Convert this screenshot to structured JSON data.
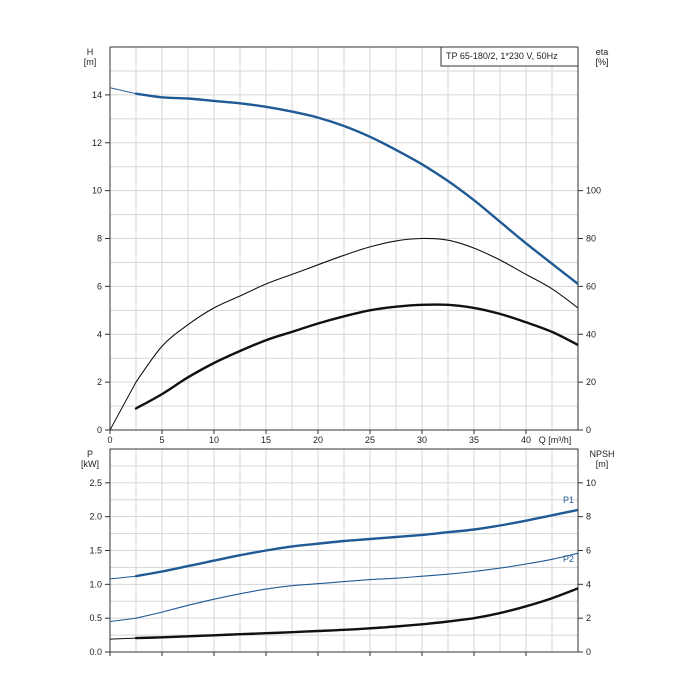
{
  "chart_data": [
    {
      "type": "line",
      "title": "TP 65-180/2, 1*230 V, 50Hz",
      "xlabel": "Q [m³/h]",
      "x_ticks": [
        "0",
        "5",
        "10",
        "15",
        "20",
        "25",
        "30",
        "35",
        "40"
      ],
      "xlim": [
        0,
        45
      ],
      "left_axis": {
        "label": "H",
        "unit": "[m]",
        "ylim": [
          0,
          16
        ],
        "ticks": [
          "0",
          "2",
          "4",
          "6",
          "8",
          "10",
          "12",
          "14"
        ]
      },
      "right_axis": {
        "label": "eta",
        "unit": "[%]",
        "ylim": [
          0,
          160
        ],
        "ticks": [
          "0",
          "20",
          "40",
          "60",
          "80",
          "100"
        ]
      },
      "grid": true,
      "series": [
        {
          "axis": "left",
          "color": "#1f5a94",
          "width": 2.4,
          "extension": true,
          "x": [
            0,
            2.5,
            5,
            7.5,
            10,
            12.5,
            15,
            17.5,
            20,
            22.5,
            25,
            27.5,
            30,
            32.5,
            35,
            37.5,
            40,
            45
          ],
          "y": [
            14.3,
            14.05,
            13.9,
            13.85,
            13.75,
            13.65,
            13.5,
            13.3,
            13.05,
            12.7,
            12.25,
            11.7,
            11.1,
            10.4,
            9.6,
            8.7,
            7.8,
            6.1
          ]
        },
        {
          "axis": "right",
          "color": "#111111",
          "width": 1.1,
          "extension": true,
          "x": [
            0,
            2.5,
            5,
            7.5,
            10,
            12.5,
            15,
            17.5,
            20,
            22.5,
            25,
            27.5,
            30,
            32.5,
            35,
            37.5,
            40,
            42.5,
            45
          ],
          "y": [
            0,
            20,
            35,
            44,
            51,
            56,
            61,
            65,
            69,
            73,
            76.5,
            79,
            80,
            79.3,
            76,
            71,
            65,
            59,
            51
          ]
        },
        {
          "axis": "right",
          "color": "#111111",
          "width": 2.4,
          "extension": false,
          "x": [
            2.5,
            5,
            7.5,
            10,
            12.5,
            15,
            17.5,
            20,
            22.5,
            25,
            27.5,
            30,
            32.5,
            35,
            37.5,
            40,
            42.5,
            45
          ],
          "y": [
            9,
            15,
            22,
            28,
            33,
            37.5,
            41,
            44.5,
            47.5,
            50,
            51.5,
            52.3,
            52.3,
            51,
            48.5,
            45,
            41,
            35.5
          ]
        }
      ]
    },
    {
      "type": "line",
      "x_ticks": [
        "0",
        "5",
        "10",
        "15",
        "20",
        "25",
        "30",
        "35",
        "40"
      ],
      "xlim": [
        0,
        45
      ],
      "left_axis": {
        "label": "P",
        "unit": "[kW]",
        "ylim": [
          0,
          3
        ],
        "ticks": [
          "0.0",
          "0.5",
          "1.0",
          "1.5",
          "2.0",
          "2.5"
        ]
      },
      "right_axis": {
        "label": "NPSH",
        "unit": "[m]",
        "ylim": [
          0,
          12
        ],
        "ticks": [
          "0",
          "2",
          "4",
          "6",
          "8",
          "10"
        ]
      },
      "grid": true,
      "series": [
        {
          "name": "P1",
          "axis": "left",
          "color": "#1f5a94",
          "width": 2.4,
          "extension": true,
          "x": [
            0,
            2.5,
            5,
            7.5,
            10,
            12.5,
            15,
            17.5,
            20,
            22.5,
            25,
            27.5,
            30,
            32.5,
            35,
            37.5,
            40,
            42.5,
            45
          ],
          "y": [
            1.08,
            1.12,
            1.19,
            1.27,
            1.35,
            1.43,
            1.5,
            1.56,
            1.6,
            1.64,
            1.67,
            1.7,
            1.73,
            1.77,
            1.81,
            1.87,
            1.94,
            2.02,
            2.1
          ]
        },
        {
          "name": "P2",
          "axis": "left",
          "color": "#1f5a94",
          "width": 1.1,
          "extension": true,
          "x": [
            0,
            2.5,
            5,
            7.5,
            10,
            12.5,
            15,
            17.5,
            20,
            22.5,
            25,
            27.5,
            30,
            32.5,
            35,
            37.5,
            40,
            42.5,
            45
          ],
          "y": [
            0.45,
            0.5,
            0.59,
            0.69,
            0.78,
            0.86,
            0.93,
            0.98,
            1.01,
            1.04,
            1.07,
            1.09,
            1.12,
            1.15,
            1.19,
            1.24,
            1.3,
            1.37,
            1.46
          ]
        },
        {
          "axis": "right",
          "color": "#111111",
          "width": 2.4,
          "extension": true,
          "x": [
            0,
            2.5,
            5,
            7.5,
            10,
            12.5,
            15,
            17.5,
            20,
            22.5,
            25,
            27.5,
            30,
            32.5,
            35,
            37.5,
            40,
            42.5,
            45
          ],
          "y": [
            0.76,
            0.82,
            0.87,
            0.93,
            0.99,
            1.05,
            1.11,
            1.17,
            1.24,
            1.31,
            1.4,
            1.51,
            1.64,
            1.8,
            2.0,
            2.3,
            2.7,
            3.18,
            3.76
          ]
        }
      ]
    }
  ]
}
